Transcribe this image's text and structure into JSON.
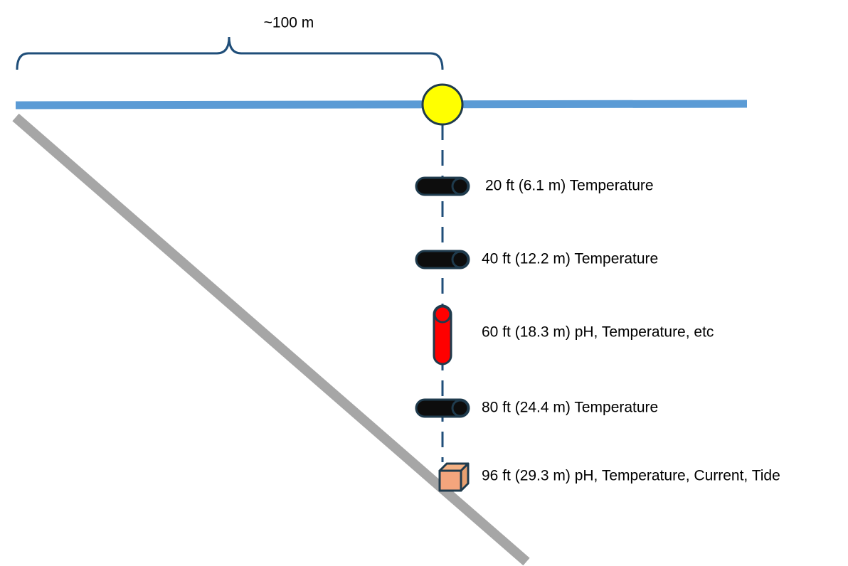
{
  "distance_label": "~100 m",
  "sensors": [
    {
      "label": "20 ft (6.1 m) Temperature"
    },
    {
      "label": "40 ft (12.2 m) Temperature"
    },
    {
      "label": "60 ft (18.3 m) pH, Temperature, etc"
    },
    {
      "label": "80 ft (24.4 m) Temperature"
    },
    {
      "label": "96 ft (29.3 m) pH, Temperature, Current, Tide"
    }
  ]
}
